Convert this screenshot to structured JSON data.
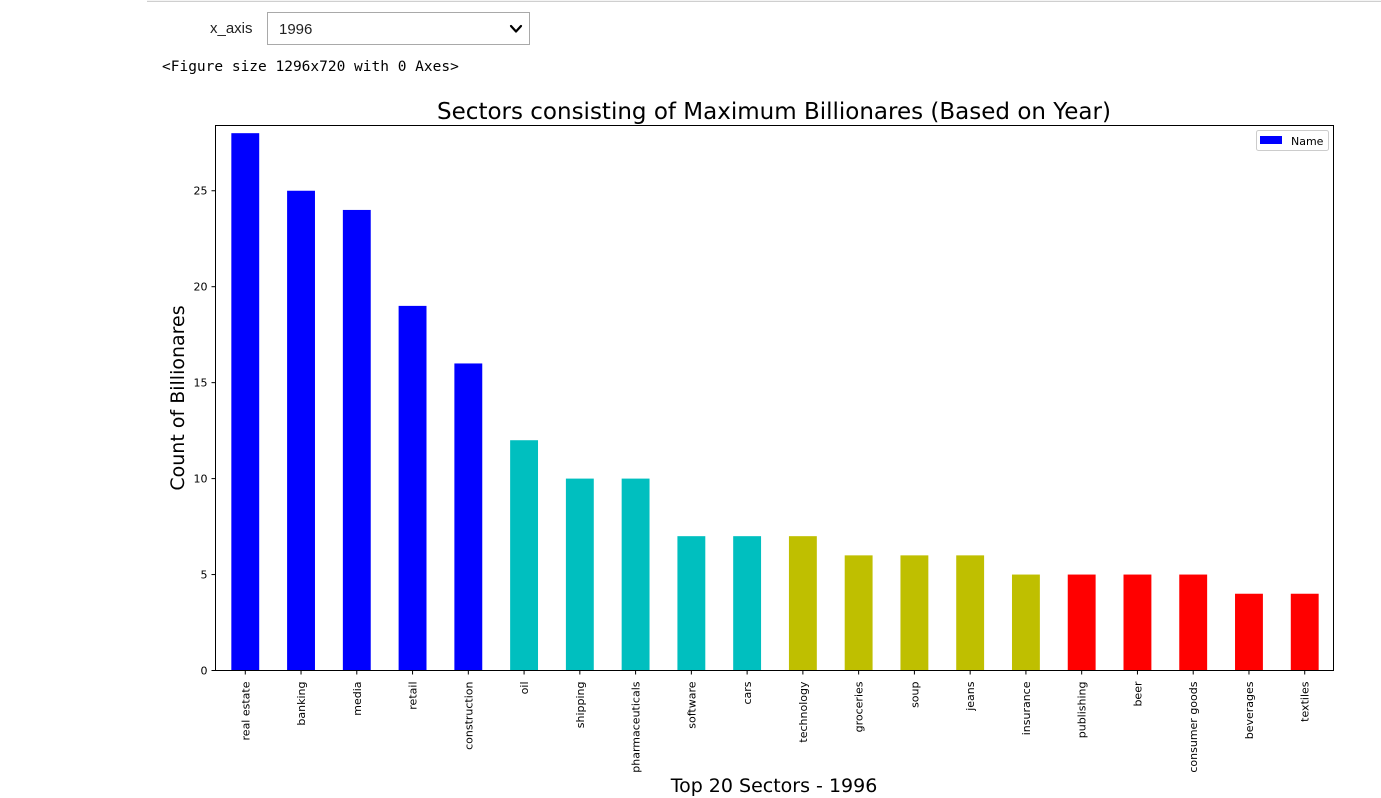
{
  "widget": {
    "label": "x_axis",
    "selected": "1996"
  },
  "output_text": "<Figure size 1296x720 with 0 Axes>",
  "chart_data": {
    "type": "bar",
    "title": "Sectors consisting of Maximum Billionares (Based on Year)",
    "xlabel": "Top 20 Sectors - 1996",
    "ylabel": "Count of Billionares",
    "ylim": [
      0,
      28.4
    ],
    "yticks": [
      0,
      5,
      10,
      15,
      20,
      25
    ],
    "legend": {
      "label": "Name",
      "placement": "top-right",
      "color": "#0000ff"
    },
    "categories": [
      "real estate",
      "banking",
      "media",
      "retail",
      "construction",
      "oil",
      "shipping",
      "pharmaceuticals",
      "software",
      "cars",
      "technology",
      "groceries",
      "soup",
      "jeans",
      "insurance",
      "publishing",
      "beer",
      "consumer goods",
      "beverages",
      "textiles"
    ],
    "values": [
      28,
      25,
      24,
      19,
      16,
      12,
      10,
      10,
      7,
      7,
      7,
      6,
      6,
      6,
      5,
      5,
      5,
      5,
      4,
      4
    ],
    "bar_colors": [
      "#0000ff",
      "#0000ff",
      "#0000ff",
      "#0000ff",
      "#0000ff",
      "#00bfbf",
      "#00bfbf",
      "#00bfbf",
      "#00bfbf",
      "#00bfbf",
      "#bfbf00",
      "#bfbf00",
      "#bfbf00",
      "#bfbf00",
      "#bfbf00",
      "#ff0000",
      "#ff0000",
      "#ff0000",
      "#ff0000",
      "#ff0000"
    ]
  }
}
